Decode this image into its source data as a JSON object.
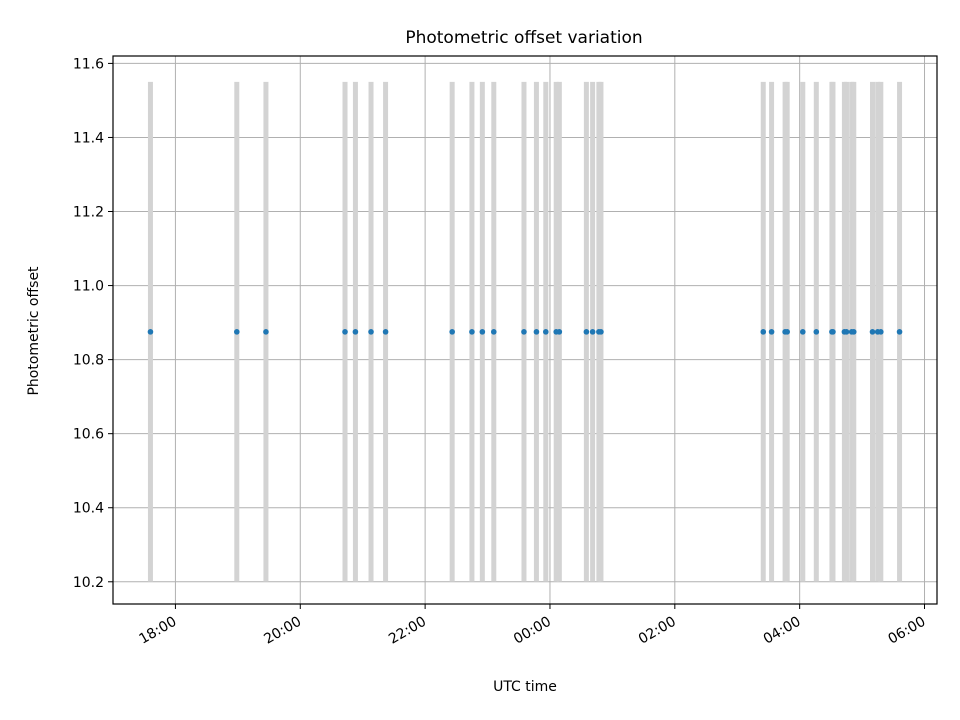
{
  "chart_data": {
    "type": "scatter",
    "title": "Photometric offset variation",
    "xlabel": "UTC time",
    "ylabel": "Photometric offset",
    "xlim": [
      "17:00",
      "06:12"
    ],
    "ylim": [
      10.14,
      11.62
    ],
    "grid": true,
    "x_ticks": [
      "18:00",
      "20:00",
      "22:00",
      "00:00",
      "02:00",
      "04:00",
      "06:00"
    ],
    "y_ticks": [
      "10.2",
      "10.4",
      "10.6",
      "10.8",
      "11.0",
      "11.2",
      "11.4",
      "11.6"
    ],
    "bands_ylim": [
      10.2,
      11.55
    ],
    "band_color": "#d3d3d3",
    "point_color": "#1f77b4",
    "series": [
      {
        "x": [
          "17:36",
          "18:59",
          "19:27",
          "20:43",
          "20:53",
          "21:08",
          "21:22",
          "22:26",
          "22:45",
          "22:55",
          "23:06",
          "23:35",
          "23:47",
          "23:56",
          "00:06",
          "00:09",
          "00:35",
          "00:41",
          "00:47",
          "00:49",
          "03:25",
          "03:33",
          "03:46",
          "03:48",
          "04:03",
          "04:16",
          "04:31",
          "04:32",
          "04:43",
          "04:45",
          "04:50",
          "04:52",
          "05:10",
          "05:15",
          "05:18",
          "05:36"
        ],
        "y": [
          10.875,
          10.875,
          10.875,
          10.875,
          10.875,
          10.875,
          10.875,
          10.875,
          10.875,
          10.875,
          10.875,
          10.875,
          10.875,
          10.875,
          10.875,
          10.875,
          10.875,
          10.875,
          10.875,
          10.875,
          10.875,
          10.875,
          10.875,
          10.875,
          10.875,
          10.875,
          10.875,
          10.875,
          10.875,
          10.875,
          10.875,
          10.875,
          10.875,
          10.875,
          10.875,
          10.875
        ]
      }
    ]
  }
}
